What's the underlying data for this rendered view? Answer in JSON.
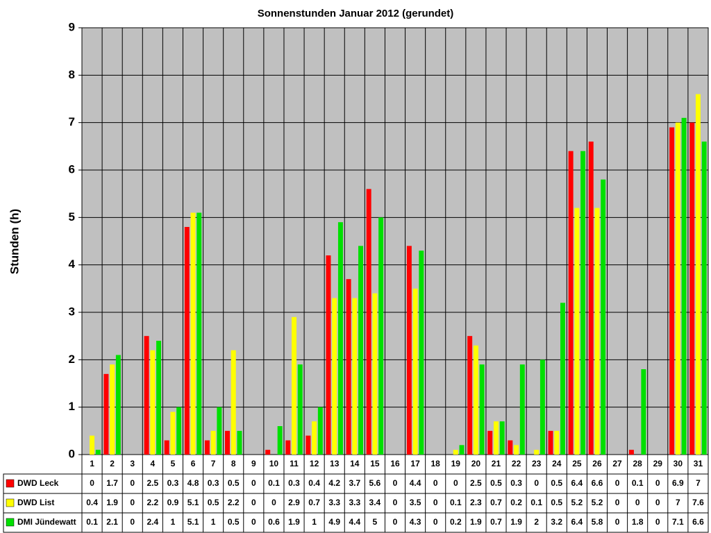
{
  "chart_data": {
    "type": "bar",
    "title": "Sonnenstunden Januar 2012 (gerundet)",
    "y_label": "Stunden (h)",
    "categories": [
      "1",
      "2",
      "3",
      "4",
      "5",
      "6",
      "7",
      "8",
      "9",
      "10",
      "11",
      "12",
      "13",
      "14",
      "15",
      "16",
      "17",
      "18",
      "19",
      "20",
      "21",
      "22",
      "23",
      "24",
      "25",
      "26",
      "27",
      "28",
      "29",
      "30",
      "31"
    ],
    "series": [
      {
        "name": "DWD Leck",
        "color": "#ff0000",
        "values": [
          0,
          1.7,
          0,
          2.5,
          0.3,
          4.8,
          0.3,
          0.5,
          0,
          0.1,
          0.3,
          0.4,
          4.2,
          3.7,
          5.6,
          0,
          4.4,
          0,
          0,
          2.5,
          0.5,
          0.3,
          0,
          0.5,
          6.4,
          6.6,
          0,
          0.1,
          0,
          6.9,
          7
        ]
      },
      {
        "name": "DWD List",
        "color": "#ffff00",
        "values": [
          0.4,
          1.9,
          0,
          2.2,
          0.9,
          5.1,
          0.5,
          2.2,
          0,
          0,
          2.9,
          0.7,
          3.3,
          3.3,
          3.4,
          0,
          3.5,
          0,
          0.1,
          2.3,
          0.7,
          0.2,
          0.1,
          0.5,
          5.2,
          5.2,
          0,
          0,
          0,
          7,
          7.6
        ]
      },
      {
        "name": "DMI Jündewatt",
        "color": "#00e000",
        "values": [
          0.1,
          2.1,
          0,
          2.4,
          1,
          5.1,
          1,
          0.5,
          0,
          0.6,
          1.9,
          1,
          4.9,
          4.4,
          5,
          0,
          4.3,
          0,
          0.2,
          1.9,
          0.7,
          1.9,
          2,
          3.2,
          6.4,
          5.8,
          0,
          1.8,
          0,
          7.1,
          6.6
        ]
      }
    ],
    "ylim": [
      0,
      9
    ],
    "yticks": [
      0,
      1,
      2,
      3,
      4,
      5,
      6,
      7,
      8,
      9
    ],
    "grid": true,
    "plot_background": "#c0c0c0"
  }
}
